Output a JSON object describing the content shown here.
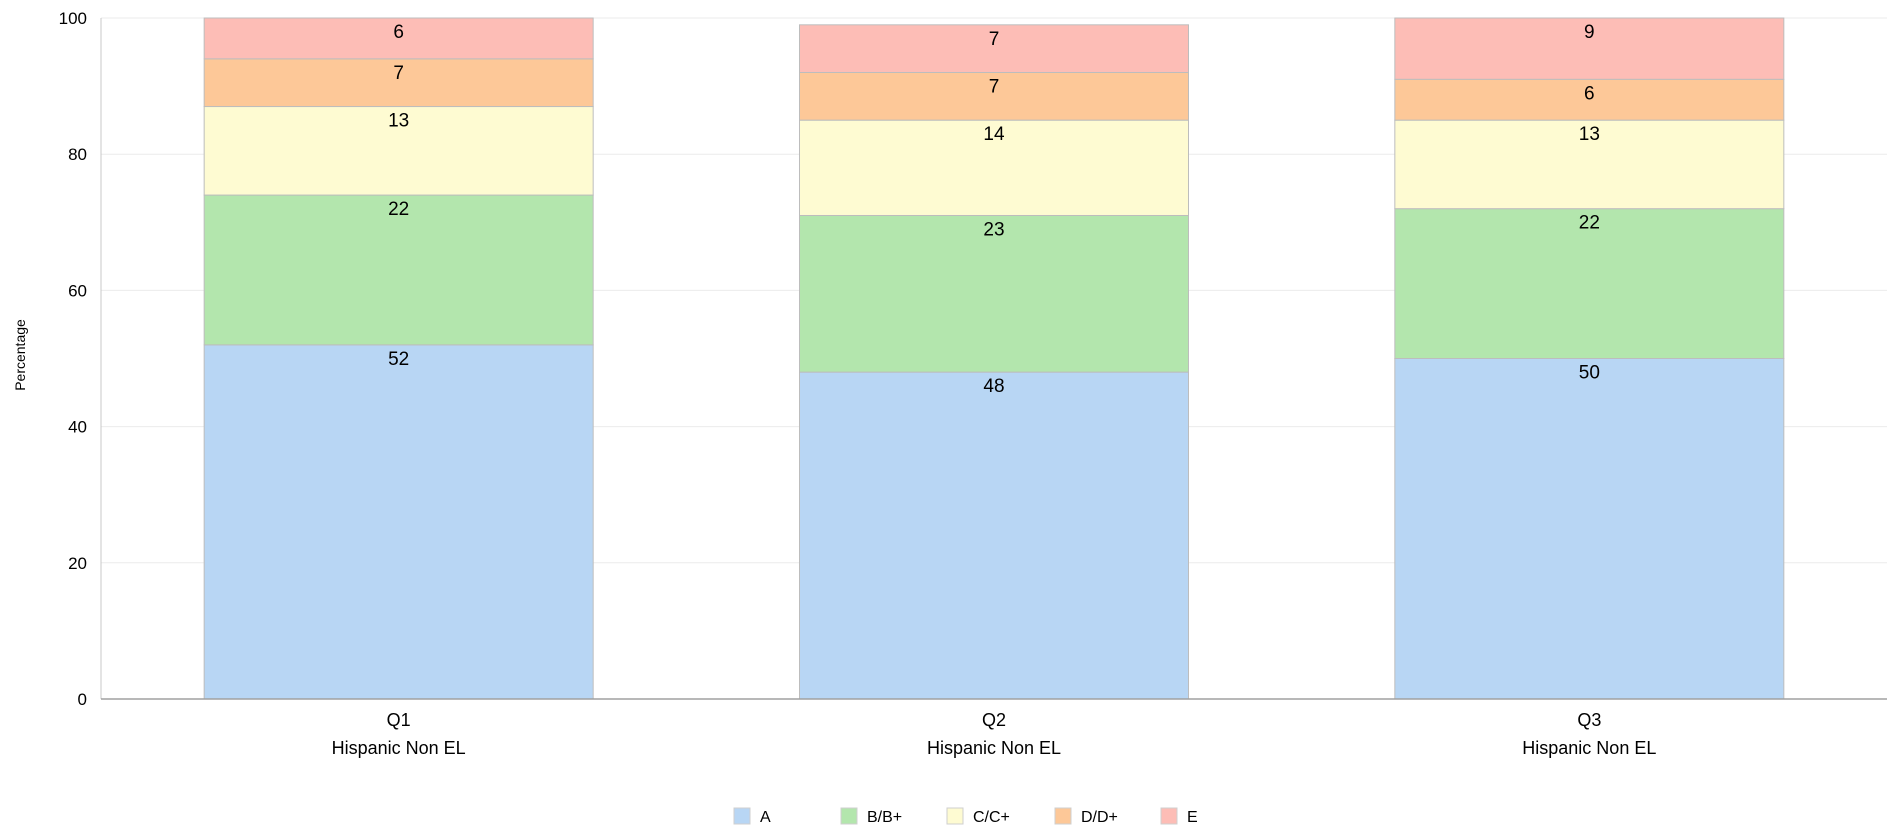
{
  "chart_data": {
    "type": "bar",
    "stacked": true,
    "ylabel": "Percentage",
    "xlabel": "",
    "ylim": [
      0,
      100
    ],
    "yticks": [
      "0",
      "20",
      "40",
      "60",
      "80",
      "100"
    ],
    "grid": true,
    "legend_position": "bottom",
    "categories": [
      {
        "line1": "Q1",
        "line2": "Hispanic Non EL"
      },
      {
        "line1": "Q2",
        "line2": "Hispanic Non EL"
      },
      {
        "line1": "Q3",
        "line2": "Hispanic Non EL"
      }
    ],
    "series": [
      {
        "name": "A",
        "color": "#b8d6f4",
        "values": [
          52,
          48,
          50
        ],
        "labels": [
          "52",
          "48",
          "50"
        ]
      },
      {
        "name": "B/B+",
        "color": "#b3e6ad",
        "values": [
          22,
          23,
          22
        ],
        "labels": [
          "22",
          "23",
          "22"
        ]
      },
      {
        "name": "C/C+",
        "color": "#fefbd2",
        "values": [
          13,
          14,
          13
        ],
        "labels": [
          "13",
          "14",
          "13"
        ]
      },
      {
        "name": "D/D+",
        "color": "#fdc898",
        "values": [
          7,
          7,
          6
        ],
        "labels": [
          "7",
          "7",
          "6"
        ]
      },
      {
        "name": "E",
        "color": "#fdbdb6",
        "values": [
          6,
          7,
          9
        ],
        "labels": [
          "6",
          "7",
          "9"
        ]
      }
    ]
  }
}
